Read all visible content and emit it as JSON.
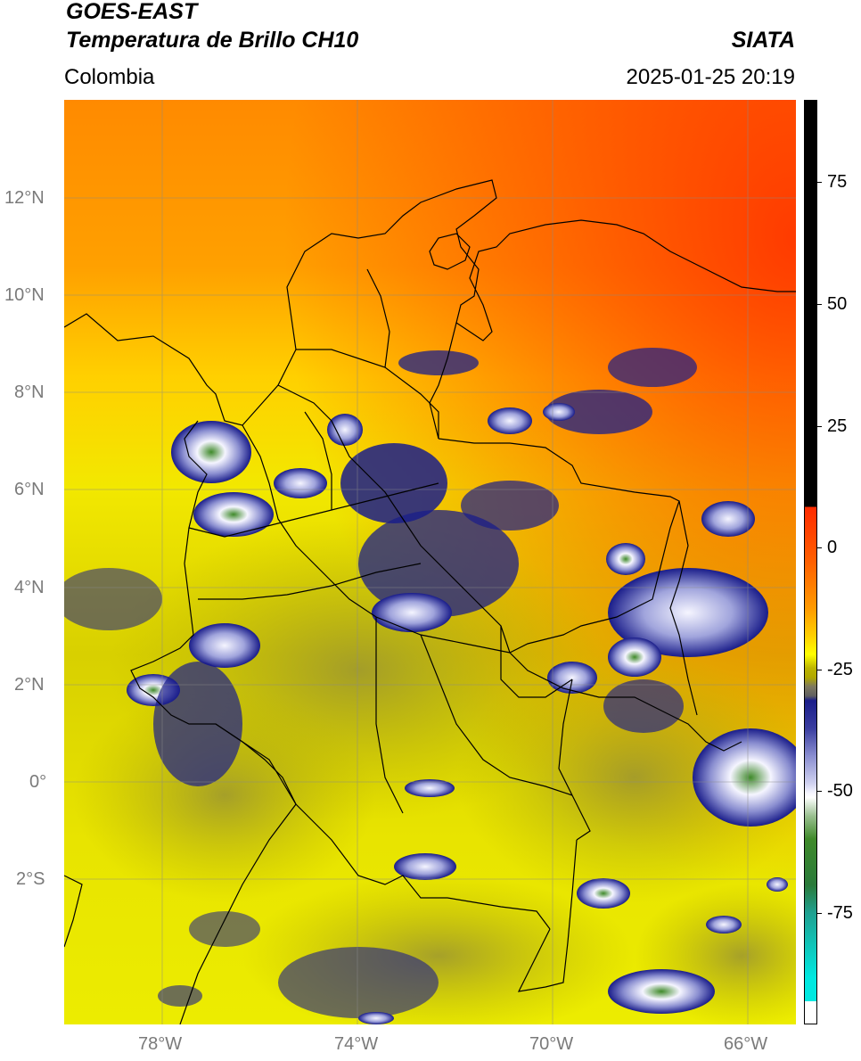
{
  "header": {
    "satellite": "GOES-EAST",
    "product": "Temperatura de Brillo CH10",
    "region": "Colombia",
    "agency": "SIATA",
    "datetime": "2025-01-25 20:19"
  },
  "map": {
    "projection": "PlateCarree",
    "extent": {
      "lon_min": -80,
      "lon_max": -65,
      "lat_min": -5,
      "lat_max": 14
    },
    "gridlines": true,
    "lat_labels": [
      "12°N",
      "10°N",
      "8°N",
      "6°N",
      "4°N",
      "2°N",
      "0°",
      "2°S"
    ],
    "lon_labels": [
      "78°W",
      "74°W",
      "70°W",
      "66°W"
    ]
  },
  "colorbar": {
    "tick_labels": [
      "75",
      "50",
      "25",
      "0",
      "-25",
      "-50",
      "-75"
    ],
    "colors": {
      "hot": "#ff2a00",
      "warm": "#ff9200",
      "mild": "#ffff00",
      "olive": "#bcb400",
      "gray": "#7d7860",
      "navy": "#1a1d8a",
      "white": "#f5f5ff",
      "green": "#3f8a2a",
      "cyan": "#00e8e0",
      "black": "#000000"
    }
  }
}
